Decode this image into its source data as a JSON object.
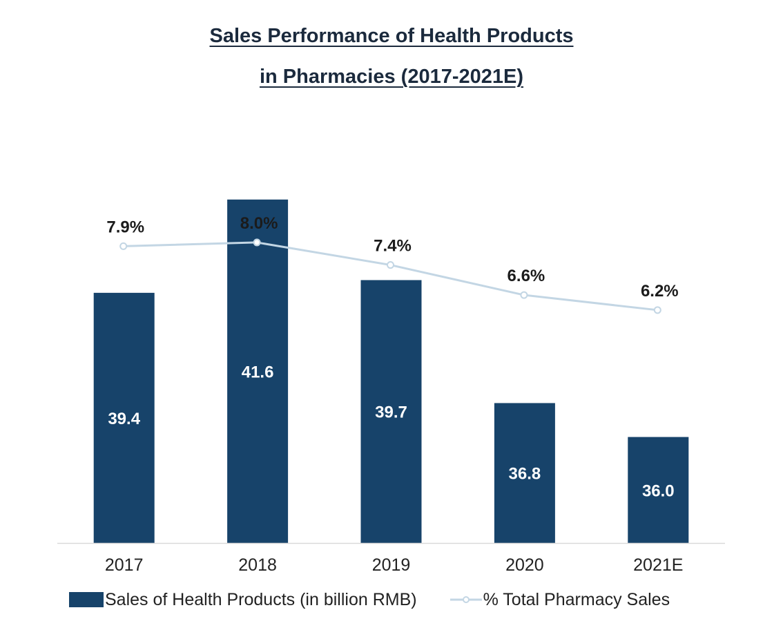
{
  "chart_data": {
    "type": "bar",
    "title_line1": "Sales Performance of Health Products",
    "title_line2": "in Pharmacies (2017-2021E)",
    "categories": [
      "2017",
      "2018",
      "2019",
      "2020",
      "2021E"
    ],
    "series": [
      {
        "name": "Sales of Health Products (in billion RMB)",
        "type": "bar",
        "values": [
          39.4,
          41.6,
          39.7,
          36.8,
          36.0
        ],
        "labels": [
          "39.4",
          "41.6",
          "39.7",
          "36.8",
          "36.0"
        ],
        "color": "#17436a"
      },
      {
        "name": "% Total Pharmacy Sales",
        "type": "line",
        "values": [
          7.9,
          8.0,
          7.4,
          6.6,
          6.2
        ],
        "labels": [
          "7.9%",
          "8.0%",
          "7.4%",
          "6.6%",
          "6.2%"
        ],
        "color": "#c3d6e4"
      }
    ],
    "bar_axis_range": [
      33.5,
      42.2
    ],
    "line_axis_range": [
      0,
      10.15
    ],
    "grid": false,
    "legend": "bottom"
  }
}
